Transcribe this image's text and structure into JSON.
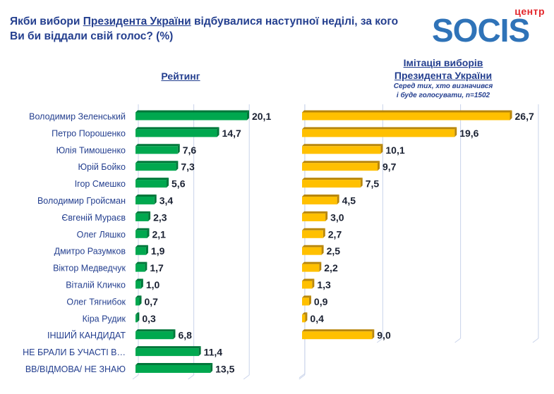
{
  "header": {
    "title_part1": "Якби вибори ",
    "title_link": "Президента України",
    "title_part2": " відбувалися наступної неділі, за кого Ви би віддали свій голос? (%)"
  },
  "logo": {
    "prefix": "центр",
    "name": "SOCIS"
  },
  "colors": {
    "rating_bar": "#00a84f",
    "rating_bar_dark": "#00773a",
    "imitation_bar": "#ffc000",
    "imitation_bar_dark": "#b8860b",
    "text": "#243f8f",
    "grid": "#c9d3ea"
  },
  "chart_data": [
    {
      "type": "bar",
      "orientation": "horizontal",
      "title": "Рейтинг",
      "categories": [
        "Володимир Зеленський",
        "Петро Порошенко",
        "Юлія Тимошенко",
        "Юрій Бойко",
        "Ігор Смешко",
        "Володимир Гройсман",
        "Євгеній Мураєв",
        "Олег Ляшко",
        "Дмитро Разумков",
        "Віктор Медведчук",
        "Віталій Кличко",
        "Олег Тягнибок",
        "Кіра Рудик",
        "ІНШИЙ КАНДИДАТ",
        "НЕ БРАЛИ Б УЧАСТІ В…",
        "ВВ/ВІДМОВА/ НЕ ЗНАЮ"
      ],
      "values": [
        20.1,
        14.7,
        7.6,
        7.3,
        5.6,
        3.4,
        2.3,
        2.1,
        1.9,
        1.7,
        1.0,
        0.7,
        0.3,
        6.8,
        11.4,
        13.5
      ],
      "value_labels": [
        "20,1",
        "14,7",
        "7,6",
        "7,3",
        "5,6",
        "3,4",
        "2,3",
        "2,1",
        "1,9",
        "1,7",
        "1,0",
        "0,7",
        "0,3",
        "6,8",
        "11,4",
        "13,5"
      ],
      "xlim": [
        0,
        30
      ],
      "grid_step": 10,
      "grid": true
    },
    {
      "type": "bar",
      "orientation": "horizontal",
      "title": "Імітація виборів Президента України",
      "title_line1": "Імітація виборів ",
      "title_line2": "Президента України",
      "subtitle_line1": "Серед тих, хто визначився",
      "subtitle_line2": "і буде голосувати, n=1502",
      "categories": [
        "Володимир Зеленський",
        "Петро Порошенко",
        "Юлія Тимошенко",
        "Юрій Бойко",
        "Ігор Смешко",
        "Володимир Гройсман",
        "Євгеній Мураєв",
        "Олег Ляшко",
        "Дмитро Разумков",
        "Віктор Медведчук",
        "Віталій Кличко",
        "Олег Тягнибок",
        "Кіра Рудик",
        "ІНШИЙ КАНДИДАТ"
      ],
      "values": [
        26.7,
        19.6,
        10.1,
        9.7,
        7.5,
        4.5,
        3.0,
        2.7,
        2.5,
        2.2,
        1.3,
        0.9,
        0.4,
        9.0
      ],
      "value_labels": [
        "26,7",
        "19,6",
        "10,1",
        "9,7",
        "7,5",
        "4,5",
        "3,0",
        "2,7",
        "2,5",
        "2,2",
        "1,3",
        "0,9",
        "0,4",
        "9,0"
      ],
      "xlim": [
        0,
        30
      ],
      "grid_step": 10,
      "grid": true
    }
  ]
}
